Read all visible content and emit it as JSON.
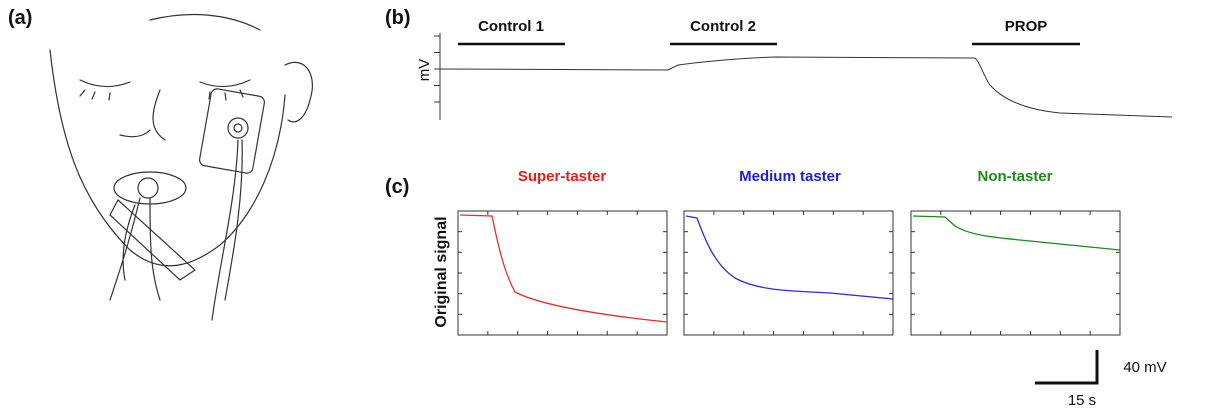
{
  "panels": {
    "a": {
      "label": "(a)"
    },
    "b": {
      "label": "(b)",
      "y_label": "mV",
      "stimuli": [
        "Control 1",
        "Control 2",
        "PROP"
      ]
    },
    "c": {
      "label": "(c)",
      "y_label": "Original signal",
      "titles": [
        "Super-taster",
        "Medium taster",
        "Non-taster"
      ],
      "scale_voltage": "40 mV",
      "scale_time": "15 s"
    }
  }
}
